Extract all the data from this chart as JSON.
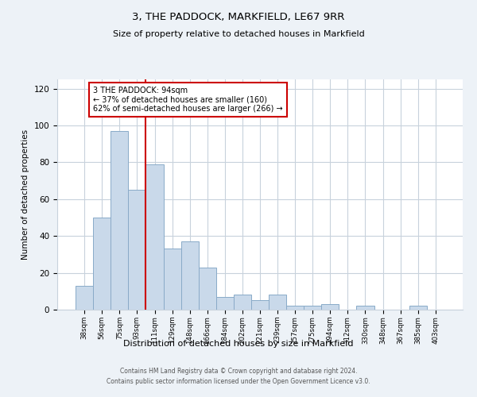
{
  "title": "3, THE PADDOCK, MARKFIELD, LE67 9RR",
  "subtitle": "Size of property relative to detached houses in Markfield",
  "xlabel": "Distribution of detached houses by size in Markfield",
  "ylabel": "Number of detached properties",
  "categories": [
    "38sqm",
    "56sqm",
    "75sqm",
    "93sqm",
    "111sqm",
    "129sqm",
    "148sqm",
    "166sqm",
    "184sqm",
    "202sqm",
    "221sqm",
    "239sqm",
    "257sqm",
    "275sqm",
    "294sqm",
    "312sqm",
    "330sqm",
    "348sqm",
    "367sqm",
    "385sqm",
    "403sqm"
  ],
  "values": [
    13,
    50,
    97,
    65,
    79,
    33,
    37,
    23,
    7,
    8,
    5,
    8,
    2,
    2,
    3,
    0,
    2,
    0,
    0,
    2,
    0
  ],
  "bar_color": "#c9d9ea",
  "bar_edge_color": "#89aac8",
  "ylim": [
    0,
    125
  ],
  "yticks": [
    0,
    20,
    40,
    60,
    80,
    100,
    120
  ],
  "vline_color": "#cc0000",
  "annotation_title": "3 THE PADDOCK: 94sqm",
  "annotation_line1": "← 37% of detached houses are smaller (160)",
  "annotation_line2": "62% of semi-detached houses are larger (266) →",
  "annotation_box_color": "#cc0000",
  "footer_line1": "Contains HM Land Registry data © Crown copyright and database right 2024.",
  "footer_line2": "Contains public sector information licensed under the Open Government Licence v3.0.",
  "bg_color": "#edf2f7",
  "plot_bg_color": "#ffffff",
  "grid_color": "#c8d2dc"
}
